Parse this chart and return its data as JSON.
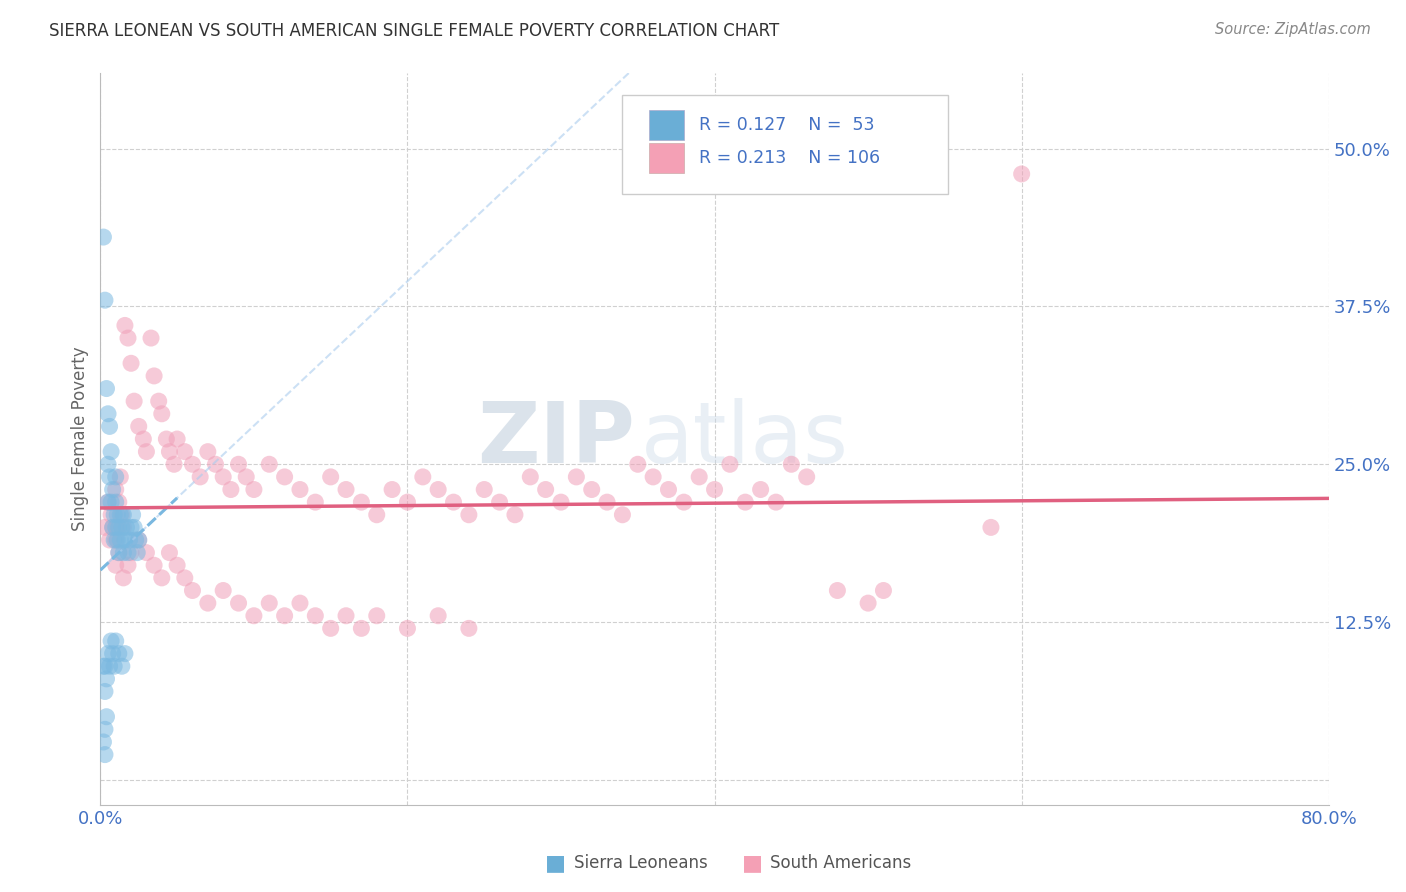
{
  "title": "SIERRA LEONEAN VS SOUTH AMERICAN SINGLE FEMALE POVERTY CORRELATION CHART",
  "source": "Source: ZipAtlas.com",
  "ylabel": "Single Female Poverty",
  "xlim": [
    0.0,
    0.8
  ],
  "ylim": [
    -0.02,
    0.56
  ],
  "yticks": [
    0.0,
    0.125,
    0.25,
    0.375,
    0.5
  ],
  "ytick_labels": [
    "",
    "12.5%",
    "25.0%",
    "37.5%",
    "50.0%"
  ],
  "xticks": [
    0.0,
    0.2,
    0.4,
    0.6,
    0.8
  ],
  "xtick_labels": [
    "0.0%",
    "",
    "",
    "",
    "80.0%"
  ],
  "watermark_zip": "ZIP",
  "watermark_atlas": "atlas",
  "legend_r1": "R = 0.127",
  "legend_n1": "N =  53",
  "legend_r2": "R = 0.213",
  "legend_n2": "N = 106",
  "blue_color": "#6aaed6",
  "pink_color": "#f4a0b5",
  "blue_dot_color": "#7ab8e0",
  "pink_dot_color": "#f0a0b8",
  "trend_blue": "#7ab8e0",
  "trend_pink": "#e06080",
  "title_color": "#333333",
  "axis_label_color": "#666666",
  "tick_color": "#4472c4",
  "grid_color": "#d0d0d0",
  "sierra_x": [
    0.002,
    0.003,
    0.004,
    0.005,
    0.005,
    0.005,
    0.006,
    0.006,
    0.007,
    0.007,
    0.008,
    0.008,
    0.009,
    0.009,
    0.01,
    0.01,
    0.01,
    0.011,
    0.011,
    0.012,
    0.012,
    0.013,
    0.013,
    0.014,
    0.015,
    0.015,
    0.016,
    0.017,
    0.018,
    0.019,
    0.02,
    0.021,
    0.022,
    0.023,
    0.024,
    0.025,
    0.003,
    0.004,
    0.005,
    0.006,
    0.007,
    0.008,
    0.009,
    0.01,
    0.012,
    0.014,
    0.016,
    0.003,
    0.004,
    0.002,
    0.003,
    0.002,
    0.003
  ],
  "sierra_y": [
    0.43,
    0.38,
    0.31,
    0.29,
    0.25,
    0.22,
    0.28,
    0.24,
    0.26,
    0.22,
    0.23,
    0.2,
    0.21,
    0.19,
    0.2,
    0.22,
    0.24,
    0.21,
    0.19,
    0.2,
    0.18,
    0.21,
    0.19,
    0.2,
    0.18,
    0.21,
    0.19,
    0.2,
    0.18,
    0.19,
    0.2,
    0.21,
    0.2,
    0.19,
    0.18,
    0.19,
    0.09,
    0.08,
    0.1,
    0.09,
    0.11,
    0.1,
    0.09,
    0.11,
    0.1,
    0.09,
    0.1,
    0.07,
    0.05,
    0.09,
    0.04,
    0.03,
    0.02
  ],
  "south_x": [
    0.003,
    0.005,
    0.006,
    0.007,
    0.008,
    0.01,
    0.01,
    0.011,
    0.012,
    0.013,
    0.014,
    0.015,
    0.016,
    0.018,
    0.02,
    0.022,
    0.025,
    0.028,
    0.03,
    0.033,
    0.035,
    0.038,
    0.04,
    0.043,
    0.045,
    0.048,
    0.05,
    0.055,
    0.06,
    0.065,
    0.07,
    0.075,
    0.08,
    0.085,
    0.09,
    0.095,
    0.1,
    0.11,
    0.12,
    0.13,
    0.14,
    0.15,
    0.16,
    0.17,
    0.18,
    0.19,
    0.2,
    0.21,
    0.22,
    0.23,
    0.24,
    0.25,
    0.26,
    0.27,
    0.28,
    0.29,
    0.3,
    0.31,
    0.32,
    0.33,
    0.34,
    0.35,
    0.36,
    0.37,
    0.38,
    0.39,
    0.4,
    0.41,
    0.42,
    0.43,
    0.44,
    0.45,
    0.46,
    0.48,
    0.5,
    0.51,
    0.58,
    0.6,
    0.01,
    0.012,
    0.015,
    0.018,
    0.02,
    0.025,
    0.03,
    0.035,
    0.04,
    0.045,
    0.05,
    0.055,
    0.06,
    0.07,
    0.08,
    0.09,
    0.1,
    0.11,
    0.12,
    0.13,
    0.14,
    0.15,
    0.16,
    0.17,
    0.18,
    0.2,
    0.22,
    0.24
  ],
  "south_y": [
    0.2,
    0.22,
    0.19,
    0.21,
    0.2,
    0.23,
    0.19,
    0.2,
    0.22,
    0.24,
    0.21,
    0.2,
    0.36,
    0.35,
    0.33,
    0.3,
    0.28,
    0.27,
    0.26,
    0.35,
    0.32,
    0.3,
    0.29,
    0.27,
    0.26,
    0.25,
    0.27,
    0.26,
    0.25,
    0.24,
    0.26,
    0.25,
    0.24,
    0.23,
    0.25,
    0.24,
    0.23,
    0.25,
    0.24,
    0.23,
    0.22,
    0.24,
    0.23,
    0.22,
    0.21,
    0.23,
    0.22,
    0.24,
    0.23,
    0.22,
    0.21,
    0.23,
    0.22,
    0.21,
    0.24,
    0.23,
    0.22,
    0.24,
    0.23,
    0.22,
    0.21,
    0.25,
    0.24,
    0.23,
    0.22,
    0.24,
    0.23,
    0.25,
    0.22,
    0.23,
    0.22,
    0.25,
    0.24,
    0.15,
    0.14,
    0.15,
    0.2,
    0.48,
    0.17,
    0.18,
    0.16,
    0.17,
    0.18,
    0.19,
    0.18,
    0.17,
    0.16,
    0.18,
    0.17,
    0.16,
    0.15,
    0.14,
    0.15,
    0.14,
    0.13,
    0.14,
    0.13,
    0.14,
    0.13,
    0.12,
    0.13,
    0.12,
    0.13,
    0.12,
    0.13,
    0.12
  ]
}
